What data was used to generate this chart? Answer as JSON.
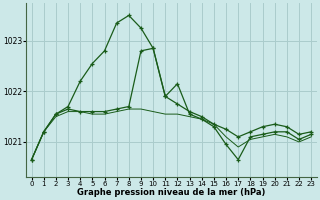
{
  "xlabel": "Graphe pression niveau de la mer (hPa)",
  "background_color": "#cce8e8",
  "grid_color": "#aacccc",
  "line_color": "#1a5c1a",
  "ylim": [
    1020.3,
    1023.75
  ],
  "xlim": [
    -0.5,
    23.5
  ],
  "yticks": [
    1021,
    1022,
    1023
  ],
  "xticks": [
    0,
    1,
    2,
    3,
    4,
    5,
    6,
    7,
    8,
    9,
    10,
    11,
    12,
    13,
    14,
    15,
    16,
    17,
    18,
    19,
    20,
    21,
    22,
    23
  ],
  "line1_x": [
    0,
    1,
    2,
    3,
    4,
    5,
    6,
    7,
    8,
    9,
    10,
    11,
    12,
    13,
    14,
    15,
    16,
    17,
    18,
    19,
    20,
    21,
    22,
    23
  ],
  "line1_y": [
    1020.65,
    1021.2,
    1021.55,
    1021.7,
    1022.2,
    1022.55,
    1022.8,
    1023.35,
    1023.5,
    1023.25,
    1022.85,
    1021.9,
    1021.75,
    1021.6,
    1021.5,
    1021.35,
    1021.25,
    1021.1,
    1021.2,
    1021.3,
    1021.35,
    1021.3,
    1021.15,
    1021.2
  ],
  "line2_x": [
    0,
    1,
    2,
    3,
    4,
    5,
    6,
    7,
    8,
    9,
    10,
    11,
    12,
    13,
    14,
    15,
    16,
    17,
    18,
    19,
    20,
    21,
    22,
    23
  ],
  "line2_y": [
    1020.65,
    1021.2,
    1021.55,
    1021.65,
    1021.6,
    1021.6,
    1021.6,
    1021.65,
    1021.7,
    1022.8,
    1022.85,
    1021.9,
    1022.15,
    1021.55,
    1021.45,
    1021.3,
    1020.95,
    1020.65,
    1021.1,
    1021.15,
    1021.2,
    1021.2,
    1021.05,
    1021.15
  ],
  "line3_x": [
    0,
    1,
    2,
    3,
    4,
    5,
    6,
    7,
    8,
    9,
    10,
    11,
    12,
    13,
    14,
    15,
    16,
    17,
    18,
    19,
    20,
    21,
    22,
    23
  ],
  "line3_y": [
    1020.65,
    1021.2,
    1021.5,
    1021.6,
    1021.6,
    1021.55,
    1021.55,
    1021.6,
    1021.65,
    1021.65,
    1021.6,
    1021.55,
    1021.55,
    1021.5,
    1021.45,
    1021.35,
    1021.1,
    1020.9,
    1021.05,
    1021.1,
    1021.15,
    1021.1,
    1021.0,
    1021.1
  ]
}
